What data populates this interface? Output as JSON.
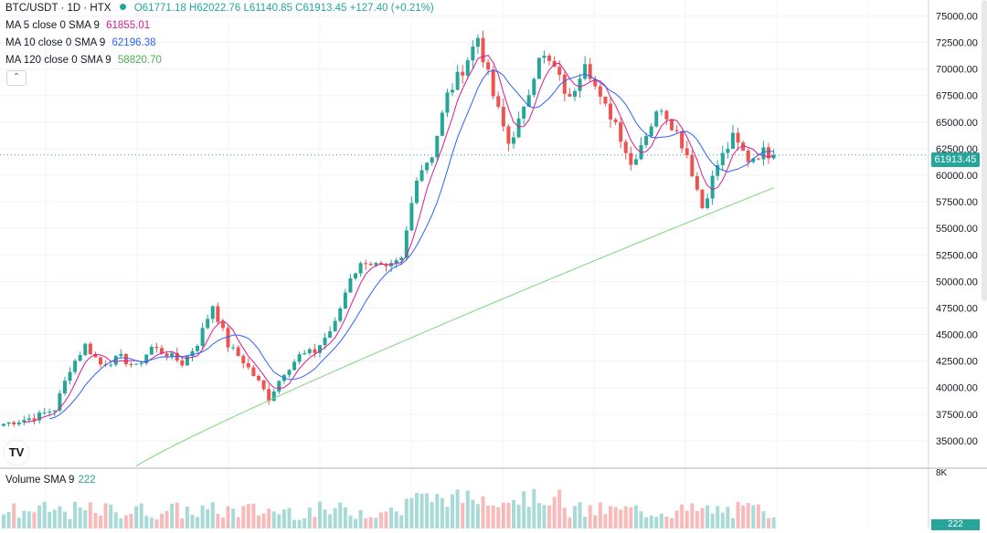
{
  "header": {
    "symbol": "BTC/USDT · 1D · HTX",
    "open": "O61771.18",
    "high": "H62022.76",
    "low": "L61140.85",
    "close": "C61913.45",
    "change": "+127.40 (+0.21%)"
  },
  "indicators": [
    {
      "label": "MA 5 close 0 SMA 9",
      "value": "61855.01",
      "color": "#d81b8f"
    },
    {
      "label": "MA 10 close 0 SMA 9",
      "value": "62196.38",
      "color": "#2962ff"
    },
    {
      "label": "MA 120 close 0 SMA 9",
      "value": "58820.70",
      "color": "#66cc66"
    }
  ],
  "collapse_glyph": "⌃",
  "logo_text": "TV",
  "last_price_label": "61913.45",
  "volume": {
    "label": "Volume SMA 9",
    "value": "222",
    "axis_label": "8K",
    "last_label": "222"
  },
  "colors": {
    "up": "#26a69a",
    "down": "#ef5350",
    "grid": "#f0f3fa",
    "axis_text": "#131722"
  },
  "chart_data": {
    "type": "candlestick",
    "title": "BTC/USDT · 1D · HTX",
    "y_ticks": [
      35000,
      37500,
      40000,
      42500,
      45000,
      47500,
      50000,
      52500,
      55000,
      57500,
      60000,
      62500,
      65000,
      67500,
      70000,
      72500,
      75000
    ],
    "ylim": [
      32500,
      76500
    ],
    "last_price": 61913.45,
    "ma120_start": 32600,
    "ma120_end": 58820.7,
    "close_path": [
      [
        0,
        36600
      ],
      [
        6,
        37200
      ],
      [
        10,
        38000
      ],
      [
        13,
        41800
      ],
      [
        16,
        44000
      ],
      [
        19,
        42200
      ],
      [
        23,
        42800
      ],
      [
        26,
        41900
      ],
      [
        29,
        43800
      ],
      [
        32,
        43200
      ],
      [
        35,
        42300
      ],
      [
        38,
        44200
      ],
      [
        41,
        47800
      ],
      [
        44,
        44000
      ],
      [
        47,
        42500
      ],
      [
        50,
        40500
      ],
      [
        52,
        39000
      ],
      [
        55,
        41500
      ],
      [
        58,
        43000
      ],
      [
        61,
        43400
      ],
      [
        65,
        46000
      ],
      [
        68,
        50500
      ],
      [
        71,
        52000
      ],
      [
        75,
        51000
      ],
      [
        78,
        52000
      ],
      [
        81,
        60000
      ],
      [
        84,
        62000
      ],
      [
        87,
        67500
      ],
      [
        90,
        70000
      ],
      [
        93,
        73000
      ],
      [
        96,
        67500
      ],
      [
        99,
        63000
      ],
      [
        102,
        66000
      ],
      [
        105,
        71500
      ],
      [
        108,
        70000
      ],
      [
        111,
        67000
      ],
      [
        114,
        71000
      ],
      [
        117,
        67000
      ],
      [
        120,
        65000
      ],
      [
        123,
        61000
      ],
      [
        126,
        64000
      ],
      [
        129,
        66500
      ],
      [
        132,
        64000
      ],
      [
        134,
        62000
      ],
      [
        137,
        57000
      ],
      [
        140,
        61000
      ],
      [
        143,
        63500
      ],
      [
        146,
        61500
      ],
      [
        149,
        62200
      ],
      [
        151,
        61913.45
      ]
    ],
    "volume_ylim": [
      0,
      8000
    ]
  }
}
